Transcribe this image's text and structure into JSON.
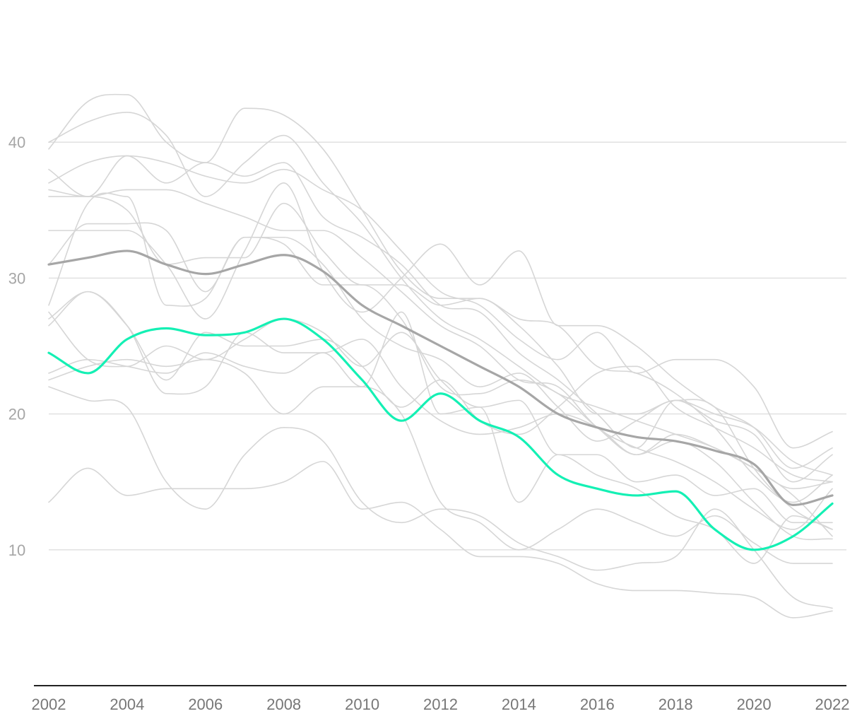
{
  "chart_data": {
    "type": "line",
    "title": "",
    "xlabel": "",
    "ylabel": "",
    "x": [
      2002,
      2003,
      2004,
      2005,
      2006,
      2007,
      2008,
      2009,
      2010,
      2011,
      2012,
      2013,
      2014,
      2015,
      2016,
      2017,
      2018,
      2019,
      2020,
      2021,
      2022
    ],
    "xlim": [
      2002,
      2022
    ],
    "ylim": [
      0,
      50
    ],
    "y_ticks": [
      10,
      20,
      30,
      40
    ],
    "x_ticks": [
      "2002",
      "2004",
      "2006",
      "2008",
      "2010",
      "2012",
      "2014",
      "2016",
      "2018",
      "2020",
      "2022"
    ],
    "grid": "horizontal",
    "legend": "none",
    "colors": {
      "background_series": "#d6d6d6",
      "average": "#a6a6a6",
      "highlight": "#14f0b4",
      "gridline": "#e3e3e3",
      "baseline": "#222222"
    },
    "background_series": [
      {
        "values": [
          40.0,
          41.5,
          42.2,
          40.5,
          36.0,
          38.5,
          40.5,
          37.0,
          34.0,
          30.0,
          27.0,
          25.5,
          23.5,
          21.5,
          20.5,
          19.5,
          18.5,
          17.5,
          16.0,
          14.5,
          15.0
        ]
      },
      {
        "values": [
          39.5,
          43.0,
          43.5,
          40.0,
          38.5,
          42.5,
          42.0,
          39.5,
          35.0,
          30.5,
          28.5,
          28.5,
          26.5,
          23.5,
          20.0,
          20.0,
          21.0,
          20.0,
          19.0,
          16.5,
          15.5
        ]
      },
      {
        "values": [
          37.0,
          38.5,
          39.0,
          38.5,
          37.5,
          37.0,
          38.0,
          36.5,
          35.0,
          32.0,
          29.0,
          28.0,
          25.5,
          24.0,
          26.0,
          23.0,
          24.0,
          24.0,
          22.0,
          17.5,
          18.7
        ]
      },
      {
        "values": [
          38.0,
          36.0,
          39.0,
          37.0,
          38.5,
          37.5,
          38.5,
          34.5,
          33.0,
          31.0,
          28.0,
          27.5,
          24.5,
          22.5,
          20.0,
          17.5,
          21.0,
          19.5,
          18.5,
          15.0,
          17.0
        ]
      },
      {
        "values": [
          36.5,
          36.0,
          36.5,
          36.5,
          35.5,
          34.5,
          33.5,
          33.5,
          31.5,
          29.0,
          26.5,
          25.0,
          22.5,
          22.0,
          19.0,
          17.5,
          16.5,
          15.0,
          13.0,
          11.5,
          14.5
        ]
      },
      {
        "values": [
          36.0,
          36.0,
          35.0,
          31.0,
          31.5,
          31.5,
          35.5,
          32.0,
          29.5,
          29.5,
          28.0,
          28.5,
          27.0,
          26.5,
          23.5,
          23.0,
          21.5,
          19.0,
          15.5,
          13.5,
          15.5
        ]
      },
      {
        "values": [
          33.5,
          33.5,
          33.5,
          31.0,
          27.0,
          32.0,
          37.0,
          30.5,
          27.5,
          30.0,
          32.5,
          29.5,
          32.0,
          26.5,
          26.5,
          25.0,
          22.5,
          20.5,
          19.0,
          16.0,
          17.5
        ]
      },
      {
        "values": [
          31.0,
          34.0,
          34.0,
          33.5,
          29.0,
          33.0,
          33.0,
          31.0,
          27.0,
          25.0,
          24.0,
          22.0,
          23.0,
          20.5,
          18.0,
          19.5,
          21.0,
          20.5,
          16.0,
          13.0,
          11.5
        ]
      },
      {
        "values": [
          28.0,
          35.5,
          36.0,
          28.0,
          28.5,
          33.0,
          32.5,
          29.5,
          29.5,
          27.0,
          22.0,
          21.5,
          22.5,
          21.5,
          19.0,
          17.0,
          18.5,
          17.5,
          16.0,
          14.0,
          11.0
        ]
      },
      {
        "values": [
          27.0,
          29.0,
          26.5,
          22.5,
          26.0,
          25.0,
          25.0,
          25.5,
          23.5,
          20.5,
          22.5,
          19.5,
          18.5,
          20.5,
          23.0,
          23.5,
          20.5,
          19.0,
          17.5,
          15.5,
          15.0
        ]
      },
      {
        "values": [
          26.5,
          29.0,
          26.5,
          21.5,
          22.0,
          26.0,
          24.5,
          24.5,
          25.5,
          22.0,
          19.5,
          18.5,
          19.0,
          20.0,
          19.0,
          17.0,
          18.0,
          16.5,
          13.5,
          11.0,
          10.8
        ]
      },
      {
        "values": [
          27.5,
          24.0,
          23.5,
          25.0,
          24.0,
          25.5,
          27.0,
          26.0,
          23.5,
          26.0,
          22.5,
          20.5,
          21.0,
          17.0,
          17.0,
          15.0,
          15.5,
          14.0,
          14.5,
          12.0,
          12.0
        ]
      },
      {
        "values": [
          23.0,
          24.0,
          23.5,
          23.0,
          24.5,
          23.5,
          23.0,
          24.5,
          22.0,
          27.5,
          20.0,
          20.5,
          13.5,
          17.0,
          15.5,
          14.5,
          12.5,
          11.5,
          9.0,
          12.5,
          11.5
        ]
      },
      {
        "values": [
          22.5,
          23.5,
          24.0,
          23.5,
          24.0,
          23.0,
          20.0,
          22.0,
          22.0,
          20.0,
          13.5,
          12.0,
          10.0,
          11.5,
          13.0,
          12.0,
          11.0,
          12.5,
          10.5,
          9.0,
          9.0
        ]
      },
      {
        "values": [
          22.0,
          21.0,
          20.5,
          15.0,
          13.0,
          17.0,
          19.0,
          18.0,
          13.5,
          12.0,
          13.0,
          12.5,
          10.5,
          9.5,
          8.5,
          9.0,
          9.5,
          13.0,
          10.0,
          6.5,
          5.7
        ]
      },
      {
        "values": [
          13.5,
          16.0,
          14.0,
          14.5,
          14.5,
          14.5,
          15.0,
          16.5,
          13.0,
          13.5,
          11.5,
          9.5,
          9.5,
          9.0,
          7.5,
          7.0,
          7.0,
          6.8,
          6.5,
          5.0,
          5.5
        ]
      }
    ],
    "series": [
      {
        "role": "average",
        "values": [
          31.0,
          31.5,
          32.0,
          31.0,
          30.3,
          31.0,
          31.7,
          30.5,
          28.0,
          26.5,
          25.0,
          23.5,
          22.0,
          20.0,
          19.0,
          18.3,
          18.0,
          17.3,
          16.3,
          13.3,
          14.0
        ]
      },
      {
        "role": "highlight",
        "values": [
          24.5,
          23.0,
          25.5,
          26.3,
          25.8,
          26.0,
          27.0,
          25.5,
          22.5,
          19.5,
          21.5,
          19.5,
          18.3,
          15.5,
          14.5,
          14.0,
          14.3,
          11.5,
          10.0,
          11.0,
          13.4
        ]
      }
    ]
  }
}
